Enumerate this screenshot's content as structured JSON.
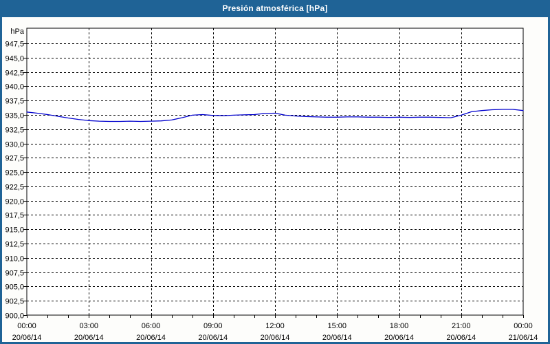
{
  "window": {
    "title": "Presión atmosférica [hPa]",
    "titlebar_color": "#1f6396",
    "border_color": "#1f6396"
  },
  "chart_data": {
    "type": "line",
    "title": "Presión atmosférica [hPa]",
    "ylabel": "hPa",
    "xlabel": "",
    "ylim": [
      900.0,
      950.1
    ],
    "xlim_hours": [
      0,
      24
    ],
    "grid": true,
    "grid_style": "dashed-black",
    "line_color": "#0000cd",
    "background": "#ffffff",
    "y_ticks": [
      {
        "label": "947,5",
        "value": 947.5
      },
      {
        "label": "945,0",
        "value": 945.0
      },
      {
        "label": "942,5",
        "value": 942.5
      },
      {
        "label": "940,0",
        "value": 940.0
      },
      {
        "label": "937,5",
        "value": 937.5
      },
      {
        "label": "935,0",
        "value": 935.0
      },
      {
        "label": "932,5",
        "value": 932.5
      },
      {
        "label": "930,0",
        "value": 930.0
      },
      {
        "label": "927,5",
        "value": 927.5
      },
      {
        "label": "925,0",
        "value": 925.0
      },
      {
        "label": "922,5",
        "value": 922.5
      },
      {
        "label": "920,0",
        "value": 920.0
      },
      {
        "label": "917,5",
        "value": 917.5
      },
      {
        "label": "915,0",
        "value": 915.0
      },
      {
        "label": "912,5",
        "value": 912.5
      },
      {
        "label": "910,0",
        "value": 910.0
      },
      {
        "label": "907,5",
        "value": 907.5
      },
      {
        "label": "905,0",
        "value": 905.0
      },
      {
        "label": "902,5",
        "value": 902.5
      },
      {
        "label": "900,0",
        "value": 900.0
      }
    ],
    "x_ticks": [
      {
        "hour": 0,
        "time": "00:00",
        "date": "20/06/14"
      },
      {
        "hour": 3,
        "time": "03:00",
        "date": "20/06/14"
      },
      {
        "hour": 6,
        "time": "06:00",
        "date": "20/06/14"
      },
      {
        "hour": 9,
        "time": "09:00",
        "date": "20/06/14"
      },
      {
        "hour": 12,
        "time": "12:00",
        "date": "20/06/14"
      },
      {
        "hour": 15,
        "time": "15:00",
        "date": "20/06/14"
      },
      {
        "hour": 18,
        "time": "18:00",
        "date": "20/06/14"
      },
      {
        "hour": 21,
        "time": "21:00",
        "date": "20/06/14"
      },
      {
        "hour": 24,
        "time": "00:00",
        "date": "21/06/14"
      }
    ],
    "minor_tick_every_hours": 1,
    "series": [
      {
        "name": "Presión atmosférica",
        "unit": "hPa",
        "points": [
          [
            0.0,
            935.5
          ],
          [
            0.5,
            935.3
          ],
          [
            1.0,
            935.05
          ],
          [
            1.5,
            934.75
          ],
          [
            2.0,
            934.45
          ],
          [
            2.5,
            934.2
          ],
          [
            3.0,
            934.0
          ],
          [
            3.5,
            933.9
          ],
          [
            4.0,
            933.85
          ],
          [
            4.5,
            933.85
          ],
          [
            5.0,
            933.9
          ],
          [
            5.5,
            933.85
          ],
          [
            6.0,
            933.9
          ],
          [
            6.5,
            933.95
          ],
          [
            7.0,
            934.1
          ],
          [
            7.5,
            934.5
          ],
          [
            8.0,
            934.95
          ],
          [
            8.5,
            935.05
          ],
          [
            9.0,
            934.9
          ],
          [
            9.5,
            934.85
          ],
          [
            10.0,
            934.95
          ],
          [
            10.5,
            935.0
          ],
          [
            11.0,
            935.05
          ],
          [
            11.5,
            935.25
          ],
          [
            12.0,
            935.3
          ],
          [
            12.5,
            934.95
          ],
          [
            13.0,
            934.8
          ],
          [
            13.5,
            934.7
          ],
          [
            14.0,
            934.65
          ],
          [
            14.5,
            934.6
          ],
          [
            15.0,
            934.6
          ],
          [
            15.5,
            934.65
          ],
          [
            16.0,
            934.65
          ],
          [
            16.5,
            934.6
          ],
          [
            17.0,
            934.6
          ],
          [
            17.5,
            934.55
          ],
          [
            18.0,
            934.6
          ],
          [
            18.5,
            934.55
          ],
          [
            19.0,
            934.6
          ],
          [
            19.5,
            934.6
          ],
          [
            20.0,
            934.55
          ],
          [
            20.5,
            934.5
          ],
          [
            21.0,
            934.95
          ],
          [
            21.5,
            935.55
          ],
          [
            22.0,
            935.75
          ],
          [
            22.5,
            935.9
          ],
          [
            23.0,
            935.95
          ],
          [
            23.5,
            935.95
          ],
          [
            24.0,
            935.75
          ]
        ]
      }
    ]
  }
}
